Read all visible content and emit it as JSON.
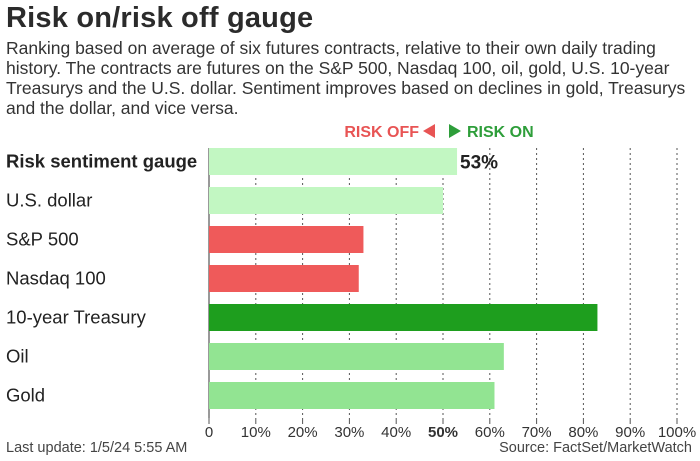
{
  "title": "Risk on/risk off gauge",
  "subtitle": "Ranking based on average of six futures contracts, relative to their own daily trading history. The contracts are futures on the S&P 500, Nasdaq 100, oil, gold, U.S. 10-year Treasurys and the U.S. dollar. Sentiment improves based on declines in gold, Treasurys and the dollar, and vice versa.",
  "footer": {
    "last_update": "Last update: 1/5/24 5:55 AM",
    "source": "Source: FactSet/MarketWatch"
  },
  "chart_data": {
    "type": "bar",
    "orientation": "horizontal",
    "legend": {
      "risk_off_label": "RISK OFF",
      "risk_on_label": "RISK ON",
      "risk_off_color": "#e85454",
      "risk_on_color": "#2e9e3a",
      "placement": "top-center"
    },
    "categories": [
      "Risk sentiment gauge",
      "U.S. dollar",
      "S&P 500",
      "Nasdaq 100",
      "10-year Treasury",
      "Oil",
      "Gold"
    ],
    "values": [
      53,
      50,
      33,
      32,
      83,
      63,
      61
    ],
    "bar_colors": [
      "#c2f7c2",
      "#c2f7c2",
      "#ef5a5a",
      "#ef5a5a",
      "#1e9e1e",
      "#92e492",
      "#92e492"
    ],
    "highlight_value_label": "53%",
    "xlim": [
      0,
      100
    ],
    "xticks": [
      "0",
      "10%",
      "20%",
      "30%",
      "40%",
      "50%",
      "60%",
      "70%",
      "80%",
      "90%",
      "100%"
    ],
    "xlabel": "",
    "ylabel": "",
    "grid": "vertical dashed"
  }
}
